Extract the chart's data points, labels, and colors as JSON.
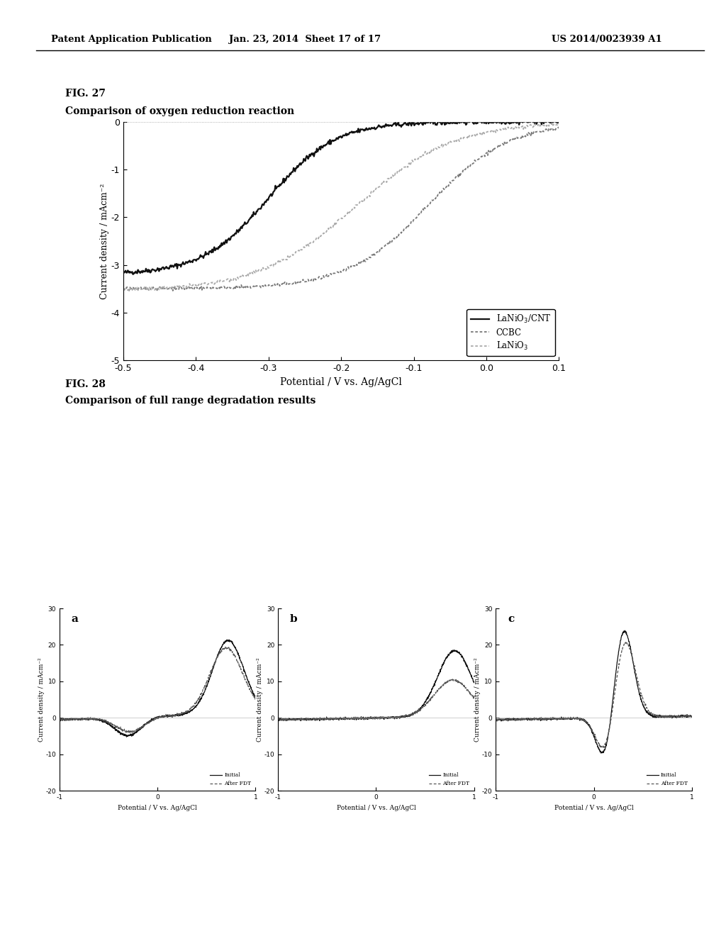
{
  "page_header_left": "Patent Application Publication",
  "page_header_middle": "Jan. 23, 2014  Sheet 17 of 17",
  "page_header_right": "US 2014/0023939 A1",
  "fig27_label": "FIG. 27",
  "fig27_title": "Comparison of oxygen reduction reaction",
  "fig27_ylabel": "Current density / mAcm⁻²",
  "fig27_xlabel": "Potential / V vs. Ag/AgCl",
  "fig27_xlim": [
    -0.5,
    0.1
  ],
  "fig27_ylim": [
    -5,
    0
  ],
  "fig27_xticks": [
    -0.5,
    -0.4,
    -0.3,
    -0.2,
    -0.1,
    0.0,
    0.1
  ],
  "fig27_yticks": [
    0,
    -1,
    -2,
    -3,
    -4,
    -5
  ],
  "fig28_label": "FIG. 28",
  "fig28_title": "Comparison of full range degradation results",
  "fig28_xlim": [
    -1,
    1
  ],
  "fig28_ylim": [
    -20,
    30
  ],
  "fig28_xticks": [
    -1,
    0,
    1
  ],
  "fig28_yticks": [
    -20,
    -10,
    0,
    10,
    20,
    30
  ],
  "fig28_xlabel": "Potential / V vs. Ag/AgCl",
  "fig28_ylabel": "Current density / mAcm⁻²",
  "subfig_labels": [
    "a",
    "b",
    "c"
  ],
  "background_color": "#ffffff"
}
